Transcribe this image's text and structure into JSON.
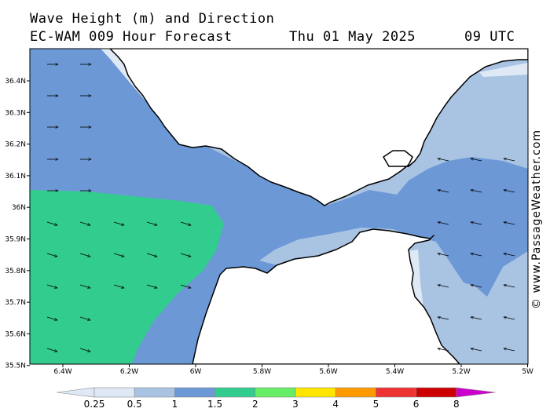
{
  "header": {
    "title": "Wave Height (m) and Direction",
    "model_hours": "EC-WAM 009 Hour Forecast",
    "date": "Thu 01 May 2025",
    "time": "09 UTC"
  },
  "watermark": "© www.PassageWeather.com",
  "axes": {
    "lat_labels": [
      "36.4N",
      "36.3N",
      "36.2N",
      "36.1N",
      "36N",
      "35.9N",
      "35.8N",
      "35.7N",
      "35.6N",
      "35.5N"
    ],
    "lon_labels": [
      "6.4W",
      "6.2W",
      "6W",
      "5.8W",
      "5.6W",
      "5.4W",
      "5.2W",
      "5W"
    ]
  },
  "legend": {
    "colors": [
      "#dfe9f6",
      "#a9c3e3",
      "#6c98d6",
      "#33cc8f",
      "#66ee66",
      "#ffe600",
      "#ff9900",
      "#ee3333",
      "#cc0000",
      "#cc00cc"
    ],
    "labels": [
      "0.25",
      "0.5",
      "1",
      "1.5",
      "2",
      "3",
      "4",
      "5",
      "6",
      "8"
    ]
  },
  "colors": {
    "sea_lightest": "#dfe9f6",
    "sea_light": "#a9c3e3",
    "sea_medium": "#6c98d6",
    "sea_green": "#33cc8f",
    "land": "#ffffff",
    "coast": "#000000"
  }
}
